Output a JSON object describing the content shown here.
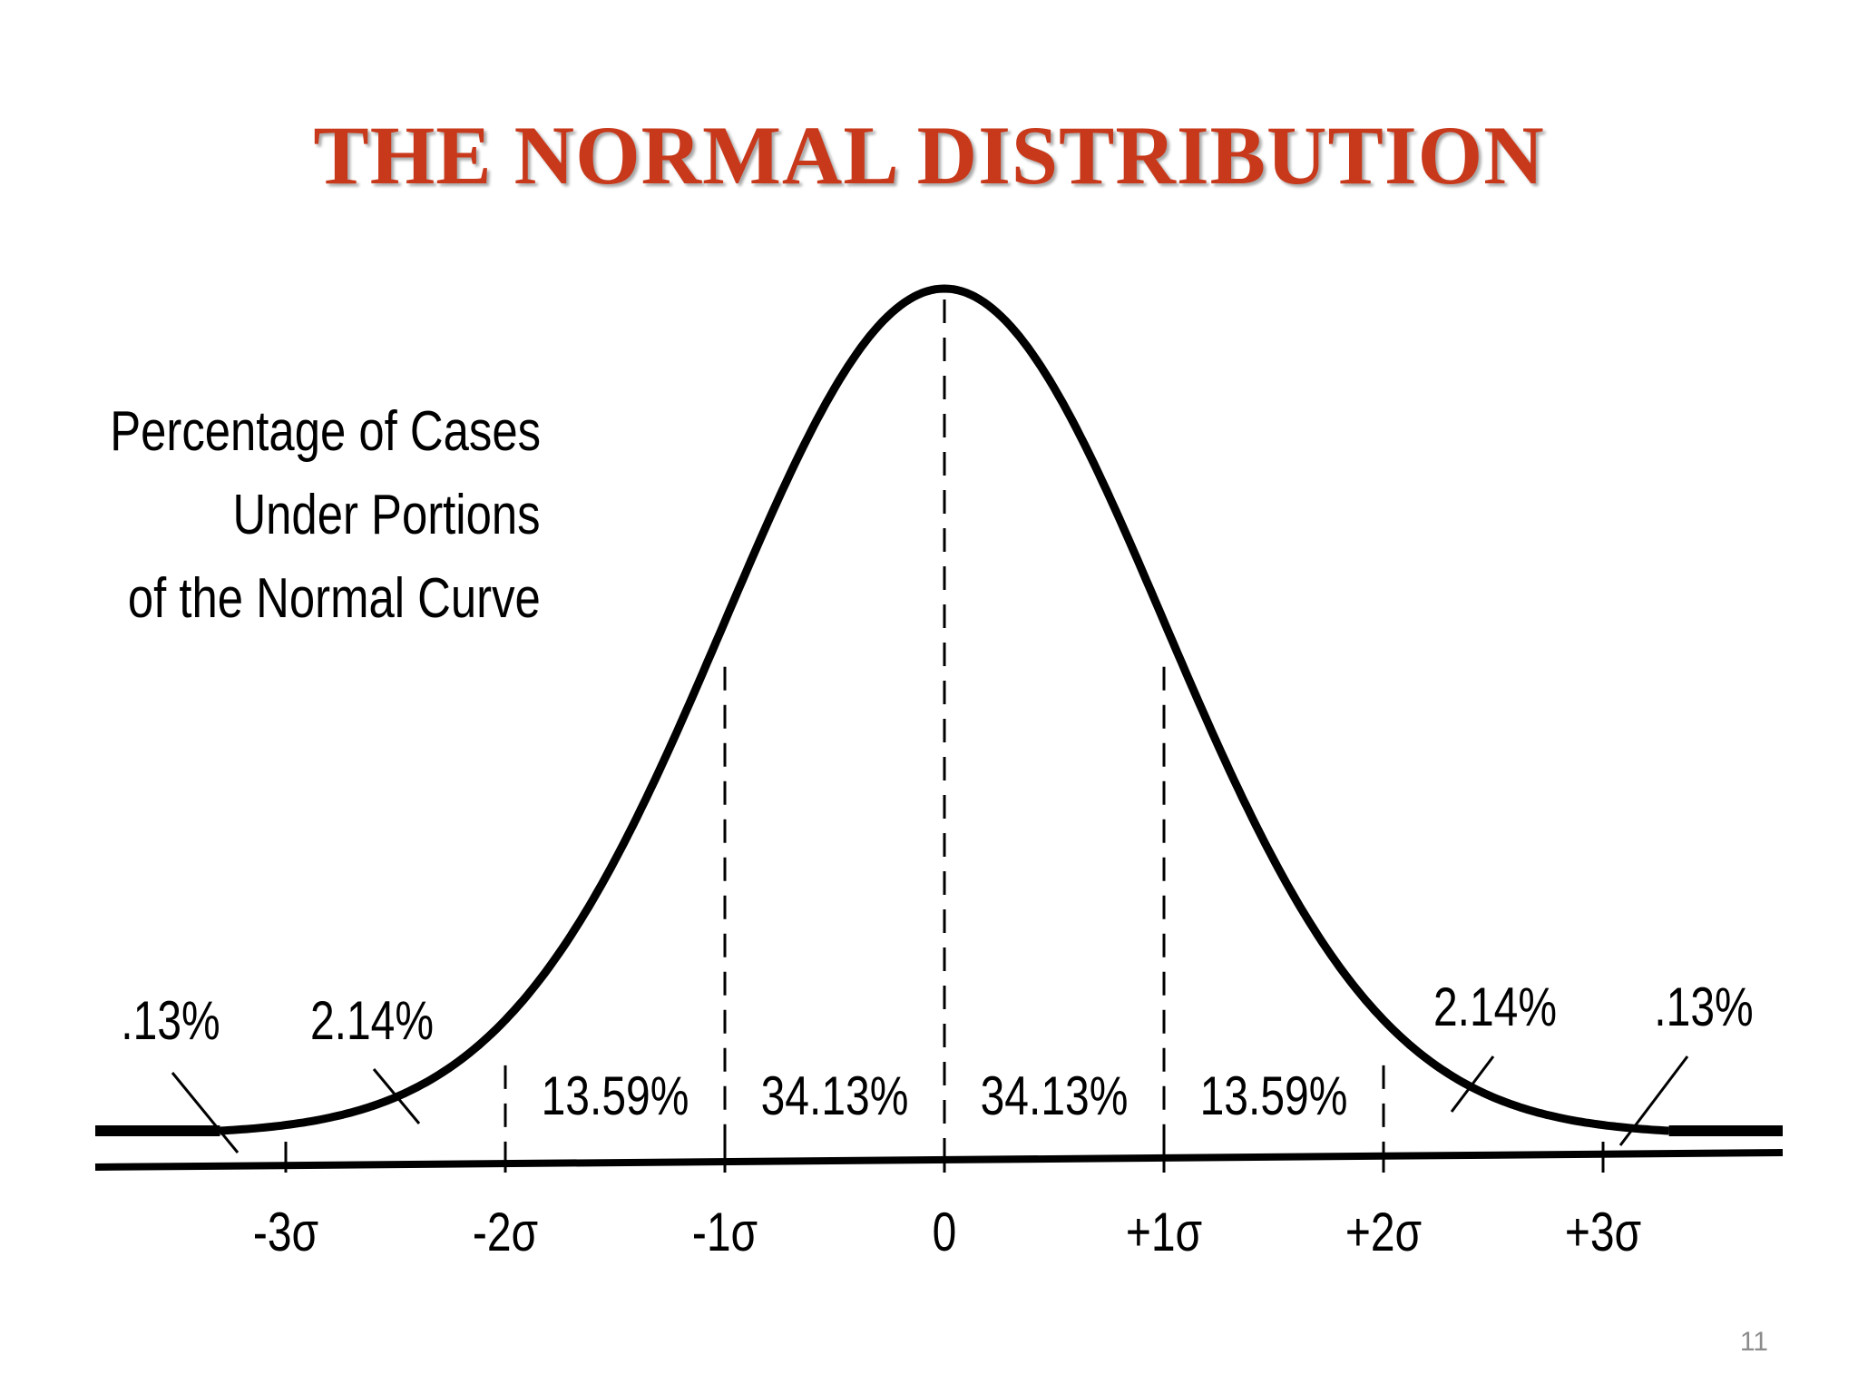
{
  "title": "THE NORMAL DISTRIBUTION",
  "caption": [
    "Percentage of Cases",
    "Under Portions",
    "of the Normal Curve"
  ],
  "colors": {
    "title": "#c8391b",
    "curve": "#000000",
    "slide_number": "#8c8c8c"
  },
  "axis_labels": [
    "-3σ",
    "-2σ",
    "-1σ",
    "0",
    "+1σ",
    "+2σ",
    "+3σ"
  ],
  "region_percentages": [
    {
      "from": -1,
      "to": 0,
      "label": "34.13%"
    },
    {
      "from": 0,
      "to": 1,
      "label": "34.13%"
    },
    {
      "from": -2,
      "to": -1,
      "label": "13.59%"
    },
    {
      "from": 1,
      "to": 2,
      "label": "13.59%"
    }
  ],
  "tail_percentages": [
    {
      "at": -2.5,
      "label": "2.14%"
    },
    {
      "at": -3.5,
      "label": ".13%"
    },
    {
      "at": 2.5,
      "label": "2.14%"
    },
    {
      "at": 3.5,
      "label": ".13%"
    }
  ],
  "slide_number": "11"
}
